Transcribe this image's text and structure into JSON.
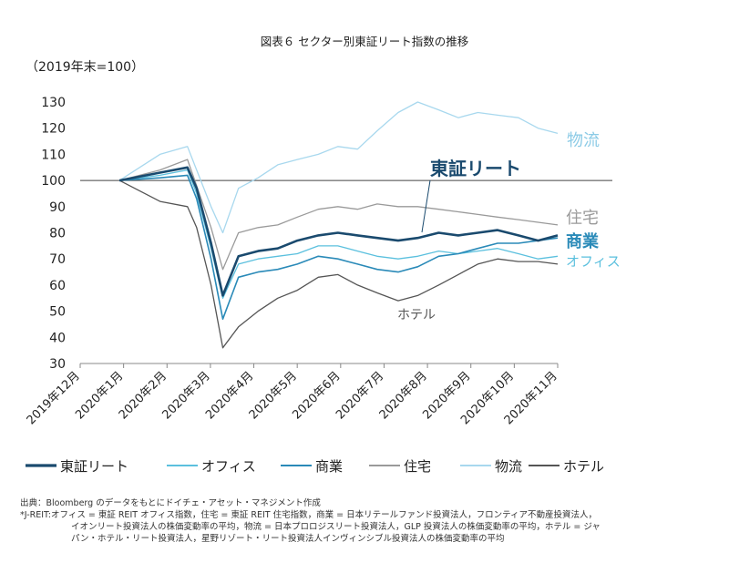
{
  "chart_data": {
    "type": "line",
    "title": "図表６ セクター別東証リート指数の推移",
    "unit_label": "（2019年末=100）",
    "ylim": [
      30,
      130
    ],
    "yticks": [
      30,
      40,
      50,
      60,
      70,
      80,
      90,
      100,
      110,
      120,
      130
    ],
    "reference_line": 100,
    "x_categories": [
      "2019年12月",
      "2020年1月",
      "2020年2月",
      "2020年3月",
      "2020年4月",
      "2020年5月",
      "2020年6月",
      "2020年7月",
      "2020年8月",
      "2020年9月",
      "2020年10月",
      "2020年11月"
    ],
    "x": [
      "2019-12-31",
      "2020-01-31",
      "2020-02-21",
      "2020-02-28",
      "2020-03-10",
      "2020-03-19",
      "2020-03-31",
      "2020-04-15",
      "2020-04-30",
      "2020-05-15",
      "2020-05-31",
      "2020-06-15",
      "2020-06-30",
      "2020-07-15",
      "2020-07-31",
      "2020-08-15",
      "2020-08-31",
      "2020-09-15",
      "2020-09-30",
      "2020-10-15",
      "2020-10-31",
      "2020-11-15",
      "2020-11-30"
    ],
    "series": [
      {
        "name": "東証リート",
        "color": "#1a4a6e",
        "width": 2.6,
        "values": [
          100,
          103,
          105,
          97,
          76,
          56,
          71,
          73,
          74,
          77,
          79,
          80,
          79,
          78,
          77,
          78,
          80,
          79,
          80,
          81,
          79,
          77,
          79
        ]
      },
      {
        "name": "オフィス",
        "color": "#5bc0de",
        "width": 1.3,
        "values": [
          100,
          102,
          104,
          95,
          74,
          55,
          68,
          70,
          71,
          72,
          75,
          75,
          73,
          71,
          70,
          71,
          73,
          72,
          73,
          74,
          72,
          70,
          71
        ]
      },
      {
        "name": "商業",
        "color": "#2a8ab8",
        "width": 1.6,
        "values": [
          100,
          101,
          102,
          93,
          70,
          47,
          63,
          65,
          66,
          68,
          71,
          70,
          68,
          66,
          65,
          67,
          71,
          72,
          74,
          76,
          76,
          77,
          78
        ]
      },
      {
        "name": "住宅",
        "color": "#9a9a9a",
        "width": 1.3,
        "values": [
          100,
          104,
          108,
          98,
          82,
          66,
          80,
          82,
          83,
          86,
          89,
          90,
          89,
          91,
          90,
          90,
          89,
          88,
          87,
          86,
          85,
          84,
          83
        ]
      },
      {
        "name": "物流",
        "color": "#a8d8ee",
        "width": 1.3,
        "values": [
          100,
          110,
          113,
          104,
          90,
          80,
          97,
          101,
          106,
          108,
          110,
          113,
          112,
          119,
          126,
          130,
          127,
          124,
          126,
          125,
          124,
          120,
          118
        ]
      },
      {
        "name": "ホテル",
        "color": "#555555",
        "width": 1.3,
        "values": [
          100,
          92,
          90,
          82,
          60,
          36,
          44,
          50,
          55,
          58,
          63,
          64,
          60,
          57,
          54,
          56,
          60,
          64,
          68,
          70,
          69,
          69,
          68
        ]
      }
    ],
    "direct_labels": [
      {
        "text": "物流",
        "color": "#8ccbe6"
      },
      {
        "text": "東証リート",
        "color": "#1a4a6e"
      },
      {
        "text": "住宅",
        "color": "#9a9a9a"
      },
      {
        "text": "商業",
        "color": "#2a8ab8"
      },
      {
        "text": "オフィス",
        "color": "#5bc0de"
      },
      {
        "text": "ホテル",
        "color": "#555555"
      }
    ],
    "legend_placement": "bottom",
    "grid": false
  },
  "notes": {
    "source": "出典：Bloomberg のデータをもとにドイチェ・アセット・マネジメント作成",
    "line1": "*J-REIT:オフィス = 東証 REIT オフィス指数，住宅 = 東証 REIT 住宅指数，商業 = 日本リテールファンド投資法人，フロンティア不動産投資法人，",
    "line2": "イオンリート投資法人の株価変動率の平均，物流 = 日本プロロジスリート投資法人，GLP 投資法人の株価変動率の平均，ホテル = ジャ",
    "line3": "パン・ホテル・リート投資法人，星野リゾート・リート投資法人インヴィンシブル投資法人の株価変動率の平均"
  }
}
